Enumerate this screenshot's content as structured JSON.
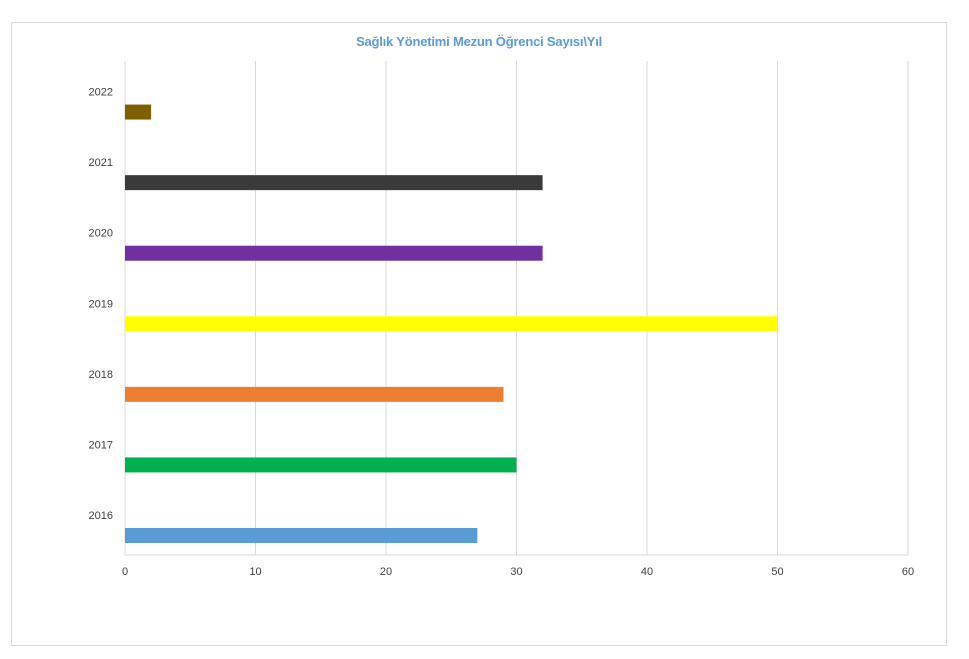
{
  "chart_data": {
    "type": "bar",
    "orientation": "horizontal",
    "title": "Sağlık Yönetimi Mezun Öğrenci Sayısı\\Yıl",
    "categories": [
      "2016",
      "2017",
      "2018",
      "2019",
      "2020",
      "2021",
      "2022"
    ],
    "values": [
      27,
      30,
      29,
      50,
      32,
      32,
      2
    ],
    "colors": [
      "#5b9bd5",
      "#00b050",
      "#ed7d31",
      "#ffff00",
      "#7030a0",
      "#3a3a3a",
      "#7f6000"
    ],
    "xlim": [
      0,
      60
    ],
    "xticks": [
      "0",
      "10",
      "20",
      "30",
      "40",
      "50",
      "60"
    ],
    "grid": true,
    "legend": "none"
  }
}
